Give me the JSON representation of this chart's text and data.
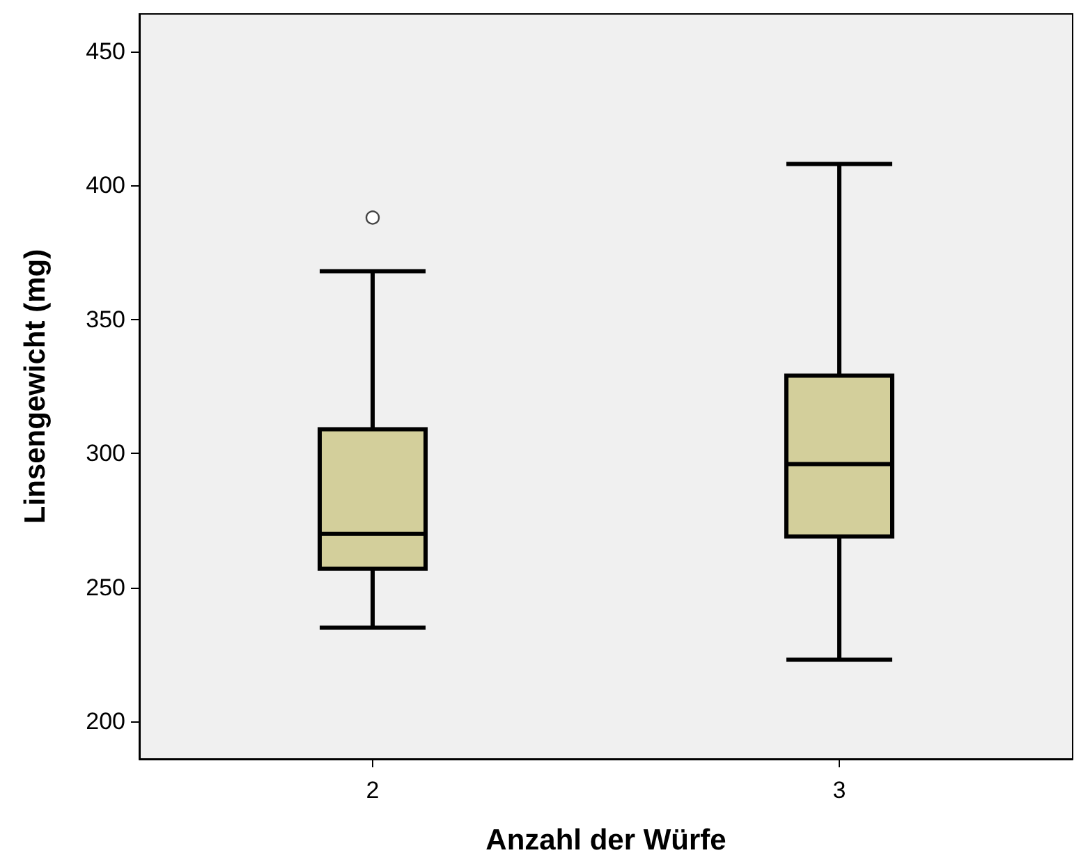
{
  "chart_data": {
    "type": "box",
    "xlabel": "Anzahl der Würfe",
    "ylabel": "Linsengewicht (mg)",
    "categories": [
      "2",
      "3"
    ],
    "boxes": [
      {
        "low": 235,
        "q1": 257,
        "median": 270,
        "q3": 309,
        "high": 368,
        "outliers": [
          388
        ]
      },
      {
        "low": 223,
        "q1": 269,
        "median": 296,
        "q3": 329,
        "high": 408
      }
    ],
    "color": "#d3cf9b",
    "ylim": [
      186,
      464
    ],
    "yticks": [
      200,
      250,
      300,
      350,
      400,
      450
    ],
    "grid": false
  }
}
